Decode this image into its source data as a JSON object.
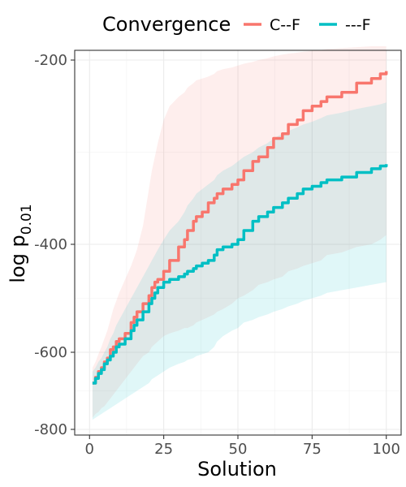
{
  "chart_data": {
    "type": "line",
    "legend_title": "Convergence",
    "legend_position": "top",
    "xlabel": "Solution",
    "ylabel_main": "log  p",
    "ylabel_sub": "0.01",
    "xlim": [
      0,
      100
    ],
    "ylim": [
      -800,
      -200
    ],
    "x_ticks": [
      0,
      25,
      50,
      75,
      100
    ],
    "x_tick_labels": [
      "0",
      "25",
      "50",
      "75",
      "100"
    ],
    "y_ticks": [
      -200,
      -400,
      -600,
      -800
    ],
    "y_tick_labels": [
      "-200",
      "-400",
      "-600",
      "-800"
    ],
    "grid": true,
    "series": [
      {
        "name": "C--F",
        "color": "#F8766D",
        "x": [
          1,
          2,
          3,
          4,
          5,
          6,
          7,
          8,
          9,
          10,
          12,
          14,
          15,
          16,
          18,
          20,
          21,
          22,
          23,
          25,
          27,
          30,
          32,
          33,
          35,
          36,
          38,
          40,
          42,
          43,
          45,
          48,
          50,
          52,
          55,
          57,
          60,
          62,
          65,
          67,
          70,
          72,
          75,
          78,
          80,
          85,
          90,
          95,
          98,
          100
        ],
        "y": [
          -680,
          -665,
          -650,
          -640,
          -625,
          -615,
          -595,
          -590,
          -580,
          -575,
          -565,
          -545,
          -535,
          -525,
          -510,
          -495,
          -480,
          -470,
          -465,
          -450,
          -430,
          -405,
          -395,
          -385,
          -375,
          -370,
          -365,
          -355,
          -350,
          -345,
          -340,
          -335,
          -330,
          -320,
          -310,
          -305,
          -295,
          -285,
          -280,
          -270,
          -265,
          -255,
          -250,
          -245,
          -240,
          -235,
          -225,
          -220,
          -215,
          -212
        ],
        "lower": [
          -770,
          -760,
          -755,
          -745,
          -740,
          -730,
          -720,
          -710,
          -700,
          -690,
          -670,
          -650,
          -640,
          -630,
          -610,
          -600,
          -590,
          -585,
          -580,
          -570,
          -565,
          -560,
          -555,
          -555,
          -550,
          -545,
          -540,
          -535,
          -530,
          -525,
          -520,
          -510,
          -500,
          -495,
          -485,
          -475,
          -470,
          -465,
          -460,
          -450,
          -445,
          -440,
          -435,
          -430,
          -420,
          -415,
          -405,
          -400,
          -395,
          -390
        ],
        "upper": [
          -640,
          -625,
          -605,
          -590,
          -575,
          -560,
          -540,
          -520,
          -505,
          -490,
          -465,
          -440,
          -425,
          -410,
          -380,
          -340,
          -320,
          -305,
          -290,
          -265,
          -250,
          -240,
          -235,
          -230,
          -225,
          -222,
          -220,
          -218,
          -215,
          -212,
          -210,
          -208,
          -206,
          -204,
          -202,
          -200,
          -198,
          -196,
          -194,
          -193,
          -192,
          -191,
          -190,
          -189,
          -188,
          -187,
          -186,
          -185,
          -184,
          -183
        ]
      },
      {
        "name": "---F",
        "color": "#00BFC4",
        "x": [
          1,
          2,
          3,
          4,
          5,
          6,
          7,
          8,
          9,
          10,
          12,
          14,
          15,
          16,
          18,
          20,
          21,
          22,
          23,
          25,
          27,
          30,
          32,
          33,
          35,
          36,
          38,
          40,
          42,
          43,
          45,
          48,
          50,
          52,
          55,
          57,
          60,
          62,
          65,
          67,
          70,
          72,
          75,
          78,
          80,
          85,
          90,
          95,
          98,
          100
        ],
        "y": [
          -680,
          -668,
          -655,
          -645,
          -630,
          -620,
          -610,
          -600,
          -590,
          -585,
          -575,
          -560,
          -550,
          -540,
          -525,
          -510,
          -500,
          -490,
          -480,
          -470,
          -465,
          -460,
          -455,
          -450,
          -445,
          -440,
          -435,
          -430,
          -420,
          -410,
          -405,
          -400,
          -395,
          -385,
          -375,
          -370,
          -365,
          -360,
          -355,
          -350,
          -345,
          -340,
          -337,
          -333,
          -330,
          -327,
          -322,
          -318,
          -315,
          -313
        ],
        "lower": [
          -775,
          -770,
          -765,
          -760,
          -755,
          -750,
          -745,
          -740,
          -735,
          -730,
          -720,
          -710,
          -705,
          -700,
          -690,
          -680,
          -670,
          -665,
          -660,
          -650,
          -640,
          -630,
          -625,
          -620,
          -615,
          -610,
          -605,
          -600,
          -590,
          -580,
          -570,
          -560,
          -555,
          -545,
          -540,
          -535,
          -530,
          -525,
          -520,
          -515,
          -510,
          -505,
          -500,
          -495,
          -490,
          -485,
          -480,
          -475,
          -472,
          -470
        ],
        "upper": [
          -650,
          -640,
          -625,
          -615,
          -600,
          -590,
          -575,
          -565,
          -550,
          -540,
          -520,
          -500,
          -490,
          -480,
          -460,
          -440,
          -430,
          -420,
          -410,
          -395,
          -385,
          -375,
          -365,
          -358,
          -350,
          -345,
          -340,
          -335,
          -330,
          -325,
          -320,
          -315,
          -310,
          -305,
          -300,
          -295,
          -290,
          -285,
          -280,
          -277,
          -273,
          -270,
          -267,
          -263,
          -260,
          -257,
          -253,
          -250,
          -248,
          -246
        ]
      }
    ]
  }
}
